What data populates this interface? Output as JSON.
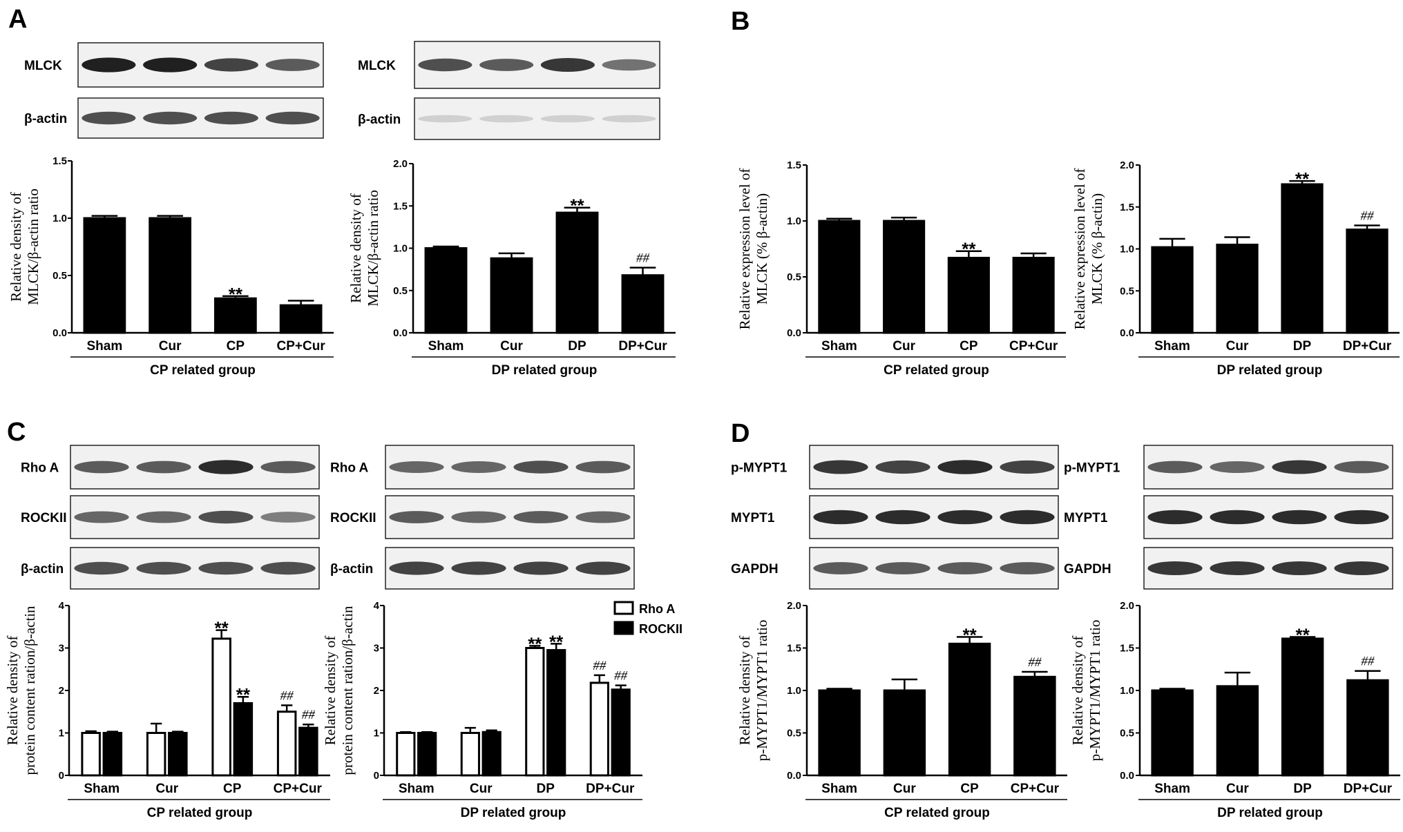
{
  "panels": [
    {
      "letter": "A"
    },
    {
      "letter": "B"
    },
    {
      "letter": "C"
    },
    {
      "letter": "D"
    }
  ],
  "blots": [
    {
      "id": "A1",
      "rows": [
        {
          "label": "MLCK",
          "intensity": [
            0.95,
            0.95,
            0.8,
            0.7
          ]
        },
        {
          "label": "β-actin",
          "intensity": [
            0.75,
            0.75,
            0.75,
            0.75
          ]
        }
      ]
    },
    {
      "id": "A2",
      "rows": [
        {
          "label": "MLCK",
          "intensity": [
            0.75,
            0.7,
            0.85,
            0.6
          ]
        },
        {
          "label": "β-actin",
          "intensity": [
            0.2,
            0.2,
            0.2,
            0.2
          ]
        }
      ]
    },
    {
      "id": "C1",
      "rows": [
        {
          "label": "Rho A",
          "intensity": [
            0.7,
            0.7,
            0.9,
            0.7
          ]
        },
        {
          "label": "ROCKII",
          "intensity": [
            0.65,
            0.65,
            0.75,
            0.55
          ]
        },
        {
          "label": "β-actin",
          "intensity": [
            0.75,
            0.75,
            0.75,
            0.75
          ]
        }
      ]
    },
    {
      "id": "C2",
      "rows": [
        {
          "label": "Rho A",
          "intensity": [
            0.65,
            0.65,
            0.75,
            0.7
          ]
        },
        {
          "label": "ROCKII",
          "intensity": [
            0.7,
            0.65,
            0.7,
            0.65
          ]
        },
        {
          "label": "β-actin",
          "intensity": [
            0.8,
            0.8,
            0.8,
            0.8
          ]
        }
      ]
    },
    {
      "id": "D1",
      "rows": [
        {
          "label": "p-MYPT1",
          "intensity": [
            0.85,
            0.8,
            0.9,
            0.8
          ]
        },
        {
          "label": "MYPT1",
          "intensity": [
            0.9,
            0.9,
            0.9,
            0.9
          ]
        },
        {
          "label": "GAPDH",
          "intensity": [
            0.7,
            0.7,
            0.7,
            0.7
          ]
        }
      ]
    },
    {
      "id": "D2",
      "rows": [
        {
          "label": "p-MYPT1",
          "intensity": [
            0.7,
            0.65,
            0.85,
            0.7
          ]
        },
        {
          "label": "MYPT1",
          "intensity": [
            0.9,
            0.9,
            0.9,
            0.9
          ]
        },
        {
          "label": "GAPDH",
          "intensity": [
            0.85,
            0.85,
            0.85,
            0.85
          ]
        }
      ]
    }
  ],
  "legend": {
    "entries": [
      "Rho A",
      "ROCKII"
    ]
  },
  "chart_data": [
    {
      "id": "A1",
      "type": "bar",
      "categories": [
        "Sham",
        "Cur",
        "CP",
        "CP+Cur"
      ],
      "group_label": "CP related group",
      "ylabel_lines": [
        "Relative density of",
        "MLCK/β-actin ratio"
      ],
      "ylim": [
        0,
        1.5
      ],
      "yticks": [
        "0.0",
        "0.5",
        "1.0",
        "1.5"
      ],
      "series": [
        {
          "values": [
            1.0,
            1.0,
            0.3,
            0.24
          ],
          "errors": [
            0.02,
            0.02,
            0.02,
            0.04
          ],
          "fill": "#000000"
        }
      ],
      "annotations": [
        {
          "category": 2,
          "series": 0,
          "text": "**",
          "kind": "sig"
        }
      ]
    },
    {
      "id": "A2",
      "type": "bar",
      "categories": [
        "Sham",
        "Cur",
        "DP",
        "DP+Cur"
      ],
      "group_label": "DP related group",
      "ylabel_lines": [
        "Relative density of",
        "MLCK/β-actin ratio"
      ],
      "ylim": [
        0,
        2.0
      ],
      "yticks": [
        "0.0",
        "0.5",
        "1.0",
        "1.5",
        "2.0"
      ],
      "series": [
        {
          "values": [
            1.0,
            0.88,
            1.42,
            0.68
          ],
          "errors": [
            0.02,
            0.06,
            0.06,
            0.09
          ],
          "fill": "#000000"
        }
      ],
      "annotations": [
        {
          "category": 2,
          "series": 0,
          "text": "**",
          "kind": "sig"
        },
        {
          "category": 3,
          "series": 0,
          "text": "##",
          "kind": "hash"
        }
      ]
    },
    {
      "id": "B1",
      "type": "bar",
      "categories": [
        "Sham",
        "Cur",
        "CP",
        "CP+Cur"
      ],
      "group_label": "CP related group",
      "ylabel_lines": [
        "Relative expression level of",
        "MLCK (% β-actin)"
      ],
      "ylim": [
        0,
        1.5
      ],
      "yticks": [
        "0.0",
        "0.5",
        "1.0",
        "1.5"
      ],
      "series": [
        {
          "values": [
            1.0,
            1.0,
            0.67,
            0.67
          ],
          "errors": [
            0.02,
            0.03,
            0.06,
            0.04
          ],
          "fill": "#000000"
        }
      ],
      "annotations": [
        {
          "category": 2,
          "series": 0,
          "text": "**",
          "kind": "sig"
        }
      ]
    },
    {
      "id": "B2",
      "type": "bar",
      "categories": [
        "Sham",
        "Cur",
        "DP",
        "DP+Cur"
      ],
      "group_label": "DP related group",
      "ylabel_lines": [
        "Relative expression level of",
        "MLCK (% β-actin)"
      ],
      "ylim": [
        0,
        2.0
      ],
      "yticks": [
        "0.0",
        "0.5",
        "1.0",
        "1.5",
        "2.0"
      ],
      "series": [
        {
          "values": [
            1.02,
            1.05,
            1.77,
            1.23
          ],
          "errors": [
            0.1,
            0.09,
            0.04,
            0.05
          ],
          "fill": "#000000"
        }
      ],
      "annotations": [
        {
          "category": 2,
          "series": 0,
          "text": "**",
          "kind": "sig"
        },
        {
          "category": 3,
          "series": 0,
          "text": "##",
          "kind": "hash"
        }
      ]
    },
    {
      "id": "C1",
      "type": "bar",
      "categories": [
        "Sham",
        "Cur",
        "CP",
        "CP+Cur"
      ],
      "group_label": "CP related group",
      "ylabel_lines": [
        "Relative density of",
        "protein content ration/β-actin"
      ],
      "ylim": [
        0,
        4
      ],
      "yticks": [
        "0",
        "1",
        "2",
        "3",
        "4"
      ],
      "series": [
        {
          "name": "Rho A",
          "values": [
            1.0,
            1.0,
            3.22,
            1.5
          ],
          "errors": [
            0.04,
            0.22,
            0.2,
            0.15
          ],
          "fill": "#ffffff"
        },
        {
          "name": "ROCKII",
          "values": [
            1.0,
            1.0,
            1.7,
            1.12
          ],
          "errors": [
            0.03,
            0.03,
            0.15,
            0.08
          ],
          "fill": "#000000"
        }
      ],
      "annotations": [
        {
          "category": 2,
          "series": 0,
          "text": "**",
          "kind": "sig"
        },
        {
          "category": 2,
          "series": 1,
          "text": "**",
          "kind": "sig"
        },
        {
          "category": 3,
          "series": 0,
          "text": "##",
          "kind": "hash"
        },
        {
          "category": 3,
          "series": 1,
          "text": "##",
          "kind": "hash"
        }
      ]
    },
    {
      "id": "C2",
      "type": "bar",
      "categories": [
        "Sham",
        "Cur",
        "DP",
        "DP+Cur"
      ],
      "group_label": "DP related group",
      "ylabel_lines": [
        "Relative density of",
        "protein content ration/β-actin"
      ],
      "ylim": [
        0,
        4
      ],
      "yticks": [
        "0",
        "1",
        "2",
        "3",
        "4"
      ],
      "legend_position": "top-right",
      "series": [
        {
          "name": "Rho A",
          "values": [
            1.0,
            1.0,
            3.0,
            2.18
          ],
          "errors": [
            0.02,
            0.12,
            0.05,
            0.18
          ],
          "fill": "#ffffff"
        },
        {
          "name": "ROCKII",
          "values": [
            1.0,
            1.02,
            2.95,
            2.02
          ],
          "errors": [
            0.02,
            0.04,
            0.15,
            0.1
          ],
          "fill": "#000000"
        }
      ],
      "annotations": [
        {
          "category": 2,
          "series": 0,
          "text": "**",
          "kind": "sig"
        },
        {
          "category": 2,
          "series": 1,
          "text": "**",
          "kind": "sig"
        },
        {
          "category": 3,
          "series": 0,
          "text": "##",
          "kind": "hash"
        },
        {
          "category": 3,
          "series": 1,
          "text": "##",
          "kind": "hash"
        }
      ]
    },
    {
      "id": "D1",
      "type": "bar",
      "categories": [
        "Sham",
        "Cur",
        "CP",
        "CP+Cur"
      ],
      "group_label": "CP related group",
      "ylabel_lines": [
        "Relative density of",
        "p-MYPT1/MYPT1 ratio"
      ],
      "ylim": [
        0,
        2.0
      ],
      "yticks": [
        "0.0",
        "0.5",
        "1.0",
        "1.5",
        "2.0"
      ],
      "series": [
        {
          "values": [
            1.0,
            1.0,
            1.55,
            1.16
          ],
          "errors": [
            0.02,
            0.13,
            0.08,
            0.06
          ],
          "fill": "#000000"
        }
      ],
      "annotations": [
        {
          "category": 2,
          "series": 0,
          "text": "**",
          "kind": "sig"
        },
        {
          "category": 3,
          "series": 0,
          "text": "##",
          "kind": "hash"
        }
      ]
    },
    {
      "id": "D2",
      "type": "bar",
      "categories": [
        "Sham",
        "Cur",
        "DP",
        "DP+Cur"
      ],
      "group_label": "DP related group",
      "ylabel_lines": [
        "Relative density of",
        "p-MYPT1/MYPT1 ratio"
      ],
      "ylim": [
        0,
        2.0
      ],
      "yticks": [
        "0.0",
        "0.5",
        "1.0",
        "1.5",
        "2.0"
      ],
      "series": [
        {
          "values": [
            1.0,
            1.05,
            1.61,
            1.12
          ],
          "errors": [
            0.02,
            0.16,
            0.02,
            0.11
          ],
          "fill": "#000000"
        }
      ],
      "annotations": [
        {
          "category": 2,
          "series": 0,
          "text": "**",
          "kind": "sig"
        },
        {
          "category": 3,
          "series": 0,
          "text": "##",
          "kind": "hash"
        }
      ]
    }
  ]
}
